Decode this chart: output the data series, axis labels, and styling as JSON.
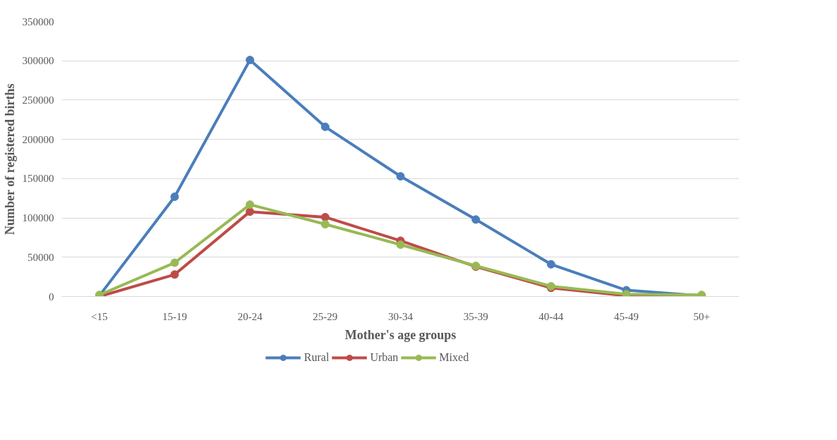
{
  "chart_data": {
    "type": "line",
    "xlabel": "Mother's age groups",
    "ylabel": "Number of registered births",
    "categories": [
      "<15",
      "15-19",
      "20-24",
      "25-29",
      "30-34",
      "35-39",
      "40-44",
      "45-49",
      "50+"
    ],
    "series": [
      {
        "name": "Rural",
        "color": "#4a7ebb",
        "values": [
          1000,
          127000,
          301000,
          216000,
          153000,
          98000,
          41000,
          8000,
          1000
        ]
      },
      {
        "name": "Urban",
        "color": "#be4b48",
        "values": [
          0,
          28000,
          108000,
          101000,
          71000,
          38000,
          11000,
          1000,
          0
        ]
      },
      {
        "name": "Mixed",
        "color": "#98b954",
        "values": [
          2000,
          43000,
          117000,
          92000,
          66000,
          39000,
          13000,
          3000,
          2000
        ]
      }
    ],
    "ylim": [
      0,
      350000
    ],
    "yticks": [
      0,
      50000,
      100000,
      150000,
      200000,
      250000,
      300000,
      350000
    ],
    "grid": "y",
    "legend": "bottom",
    "marker": "circle",
    "line_style": "solid"
  }
}
